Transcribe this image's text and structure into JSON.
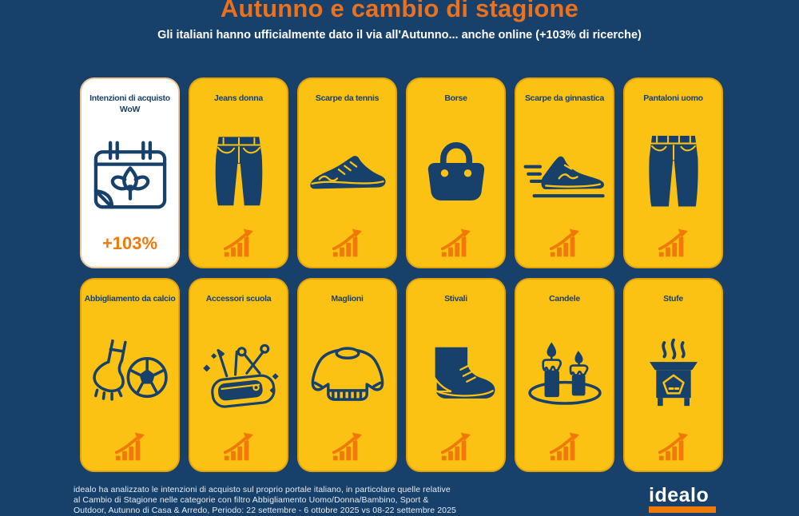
{
  "header": {
    "title": "Autunno e cambio di stagione",
    "subtitle": "Gli italiani hanno ufficialmente dato il via all'Autunno... anche online (+103% di ricerche)"
  },
  "cards": [
    {
      "label": "Intenzioni di acquisto WoW",
      "icon": "calendar-leaf-icon",
      "highlight": true,
      "value": "+103%"
    },
    {
      "label": "Jeans donna",
      "icon": "jeans-icon",
      "trend": "up"
    },
    {
      "label": "Scarpe da tennis",
      "icon": "tennis-shoe-icon",
      "trend": "up"
    },
    {
      "label": "Borse",
      "icon": "handbag-icon",
      "trend": "up"
    },
    {
      "label": "Scarpe da ginnastica",
      "icon": "running-shoe-icon",
      "trend": "up"
    },
    {
      "label": "Pantaloni uomo",
      "icon": "trousers-icon",
      "trend": "up"
    },
    {
      "label": "Abbigliamento da calcio",
      "icon": "football-boot-ball-icon",
      "trend": "up"
    },
    {
      "label": "Accessori scuola",
      "icon": "pencil-case-icon",
      "trend": "up"
    },
    {
      "label": "Maglioni",
      "icon": "sweater-icon",
      "trend": "up"
    },
    {
      "label": "Stivali",
      "icon": "boot-icon",
      "trend": "up"
    },
    {
      "label": "Candele",
      "icon": "candles-icon",
      "trend": "up"
    },
    {
      "label": "Stufe",
      "icon": "stove-icon",
      "trend": "up"
    }
  ],
  "footer": {
    "disclaimer_lines": [
      "idealo ha analizzato le intenzioni di acquisto sul proprio portale italiano, in particolare quelle relative",
      "al Cambio di Stagione nelle categorie con filtro Abbigliamento Uomo/Donna/Bambino, Sport &",
      "Outdoor, Autunno di Casa & Arredo, Periodo: 22 settembre - 6 ottobre 2025 vs 08-22 settembre 2025"
    ],
    "logo_text": "idealo"
  },
  "colors": {
    "background": "#17406B",
    "card_yellow": "#FCC213",
    "icon_navy": "#17406A",
    "accent_orange": "#F1790A",
    "title_orange": "#EC711C",
    "white": "#FFFFFF"
  }
}
